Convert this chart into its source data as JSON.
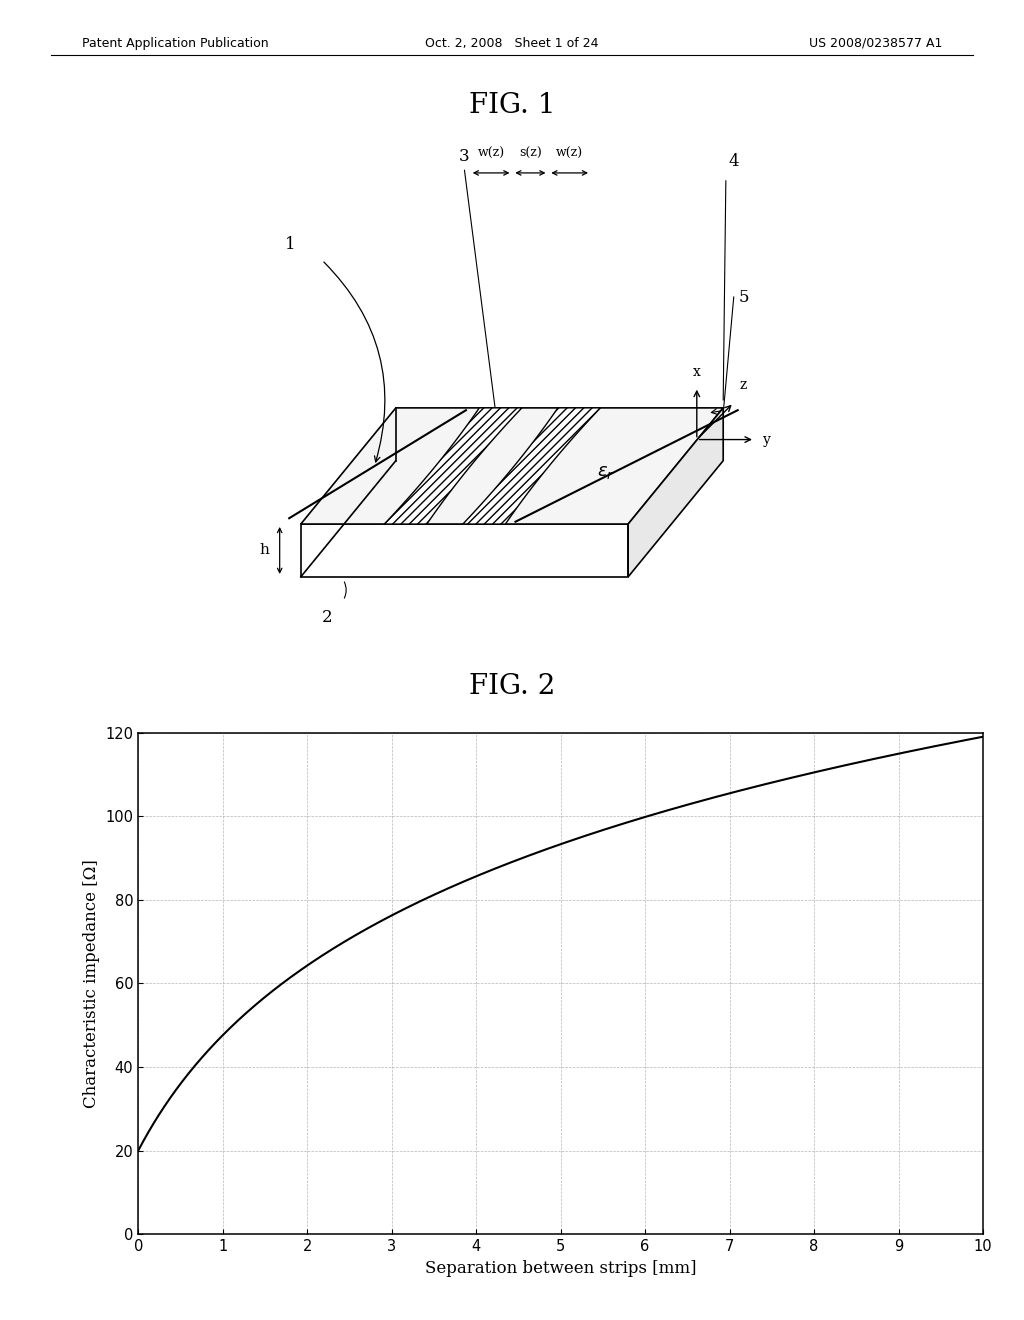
{
  "header_left": "Patent Application Publication",
  "header_mid": "Oct. 2, 2008   Sheet 1 of 24",
  "header_right": "US 2008/0238577 A1",
  "fig1_title": "FIG. 1",
  "fig2_title": "FIG. 2",
  "fig2_xlabel": "Separation between strips [mm]",
  "fig2_ylabel": "Characteristic impedance [Ω]",
  "fig2_xlim": [
    0,
    10
  ],
  "fig2_ylim": [
    0,
    120
  ],
  "fig2_xticks": [
    0,
    1,
    2,
    3,
    4,
    5,
    6,
    7,
    8,
    9,
    10
  ],
  "fig2_yticks": [
    0,
    20,
    40,
    60,
    80,
    100,
    120
  ],
  "background_color": "#ffffff",
  "line_color": "#000000",
  "grid_color": "#999999"
}
